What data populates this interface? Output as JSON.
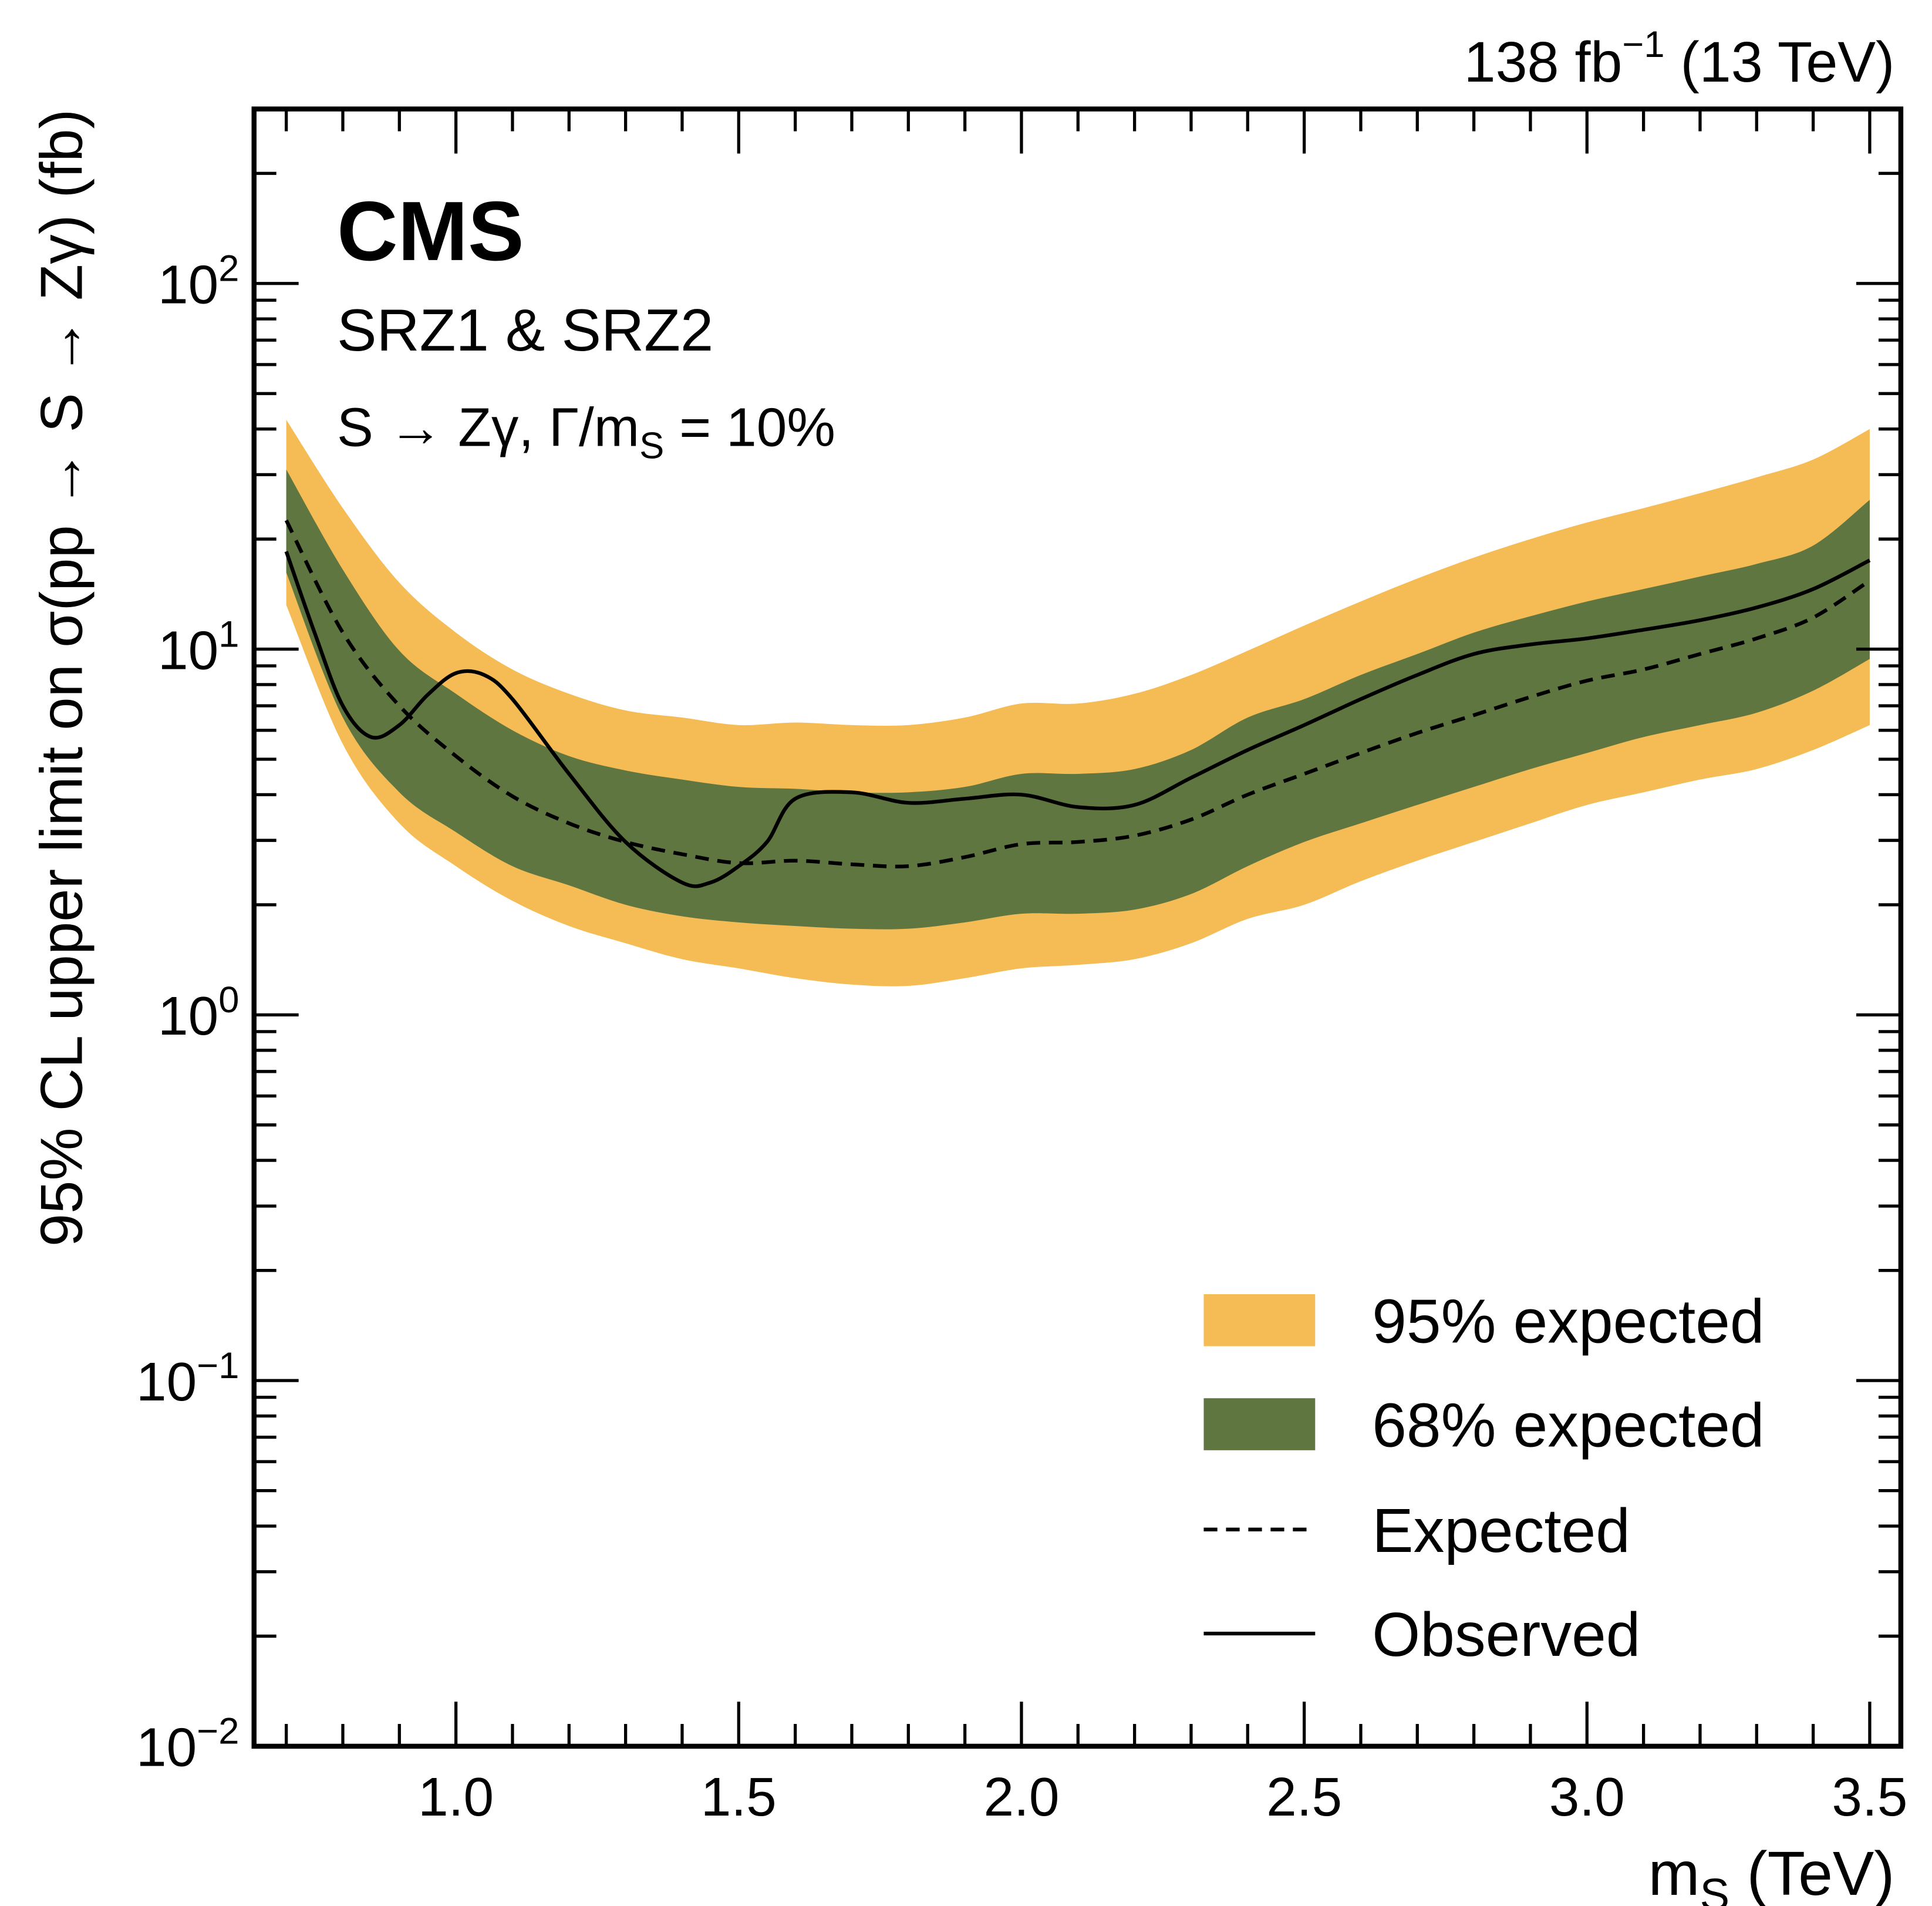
{
  "header": {
    "lumi_main": "138 fb",
    "lumi_sup": "−1",
    "lumi_tail": " (13 TeV)"
  },
  "annotations": {
    "experiment": "CMS",
    "region": "SRZ1 & SRZ2",
    "process_main": "S → Zγ,  Γ/m",
    "process_sub": "S",
    "process_tail": " = 10%"
  },
  "chart_data": {
    "type": "line",
    "title": "",
    "xlabel_main": "m",
    "xlabel_sub": "S",
    "xlabel_tail": " (TeV)",
    "ylabel": "95% CL upper limit on σ(pp → S → Zγ) (fb)",
    "xlim": [
      0.643,
      3.555
    ],
    "ylim": [
      0.01,
      300
    ],
    "yscale": "log",
    "xticks": [
      "1.0",
      "1.5",
      "2.0",
      "2.5",
      "3.0",
      "3.5"
    ],
    "yticks": [
      {
        "base": "10",
        "exp": "−2"
      },
      {
        "base": "10",
        "exp": "−1"
      },
      {
        "base": "10",
        "exp": "0"
      },
      {
        "base": "10",
        "exp": "1"
      },
      {
        "base": "10",
        "exp": "2"
      }
    ],
    "legend_position": "bottom-right",
    "colors": {
      "band95": "#F5BB54",
      "band68": "#607641",
      "line": "#000000"
    },
    "x": [
      0.7,
      0.8,
      0.9,
      1.0,
      1.1,
      1.2,
      1.3,
      1.4,
      1.5,
      1.6,
      1.7,
      1.8,
      1.9,
      2.0,
      2.1,
      2.2,
      2.3,
      2.4,
      2.5,
      2.6,
      2.7,
      2.8,
      2.9,
      3.0,
      3.1,
      3.2,
      3.3,
      3.4,
      3.5
    ],
    "series": [
      {
        "name": "95% expected",
        "kind": "band",
        "upper": [
          42.4,
          24.3,
          15.2,
          11.1,
          8.8,
          7.55,
          6.8,
          6.5,
          6.2,
          6.3,
          6.2,
          6.2,
          6.5,
          7.1,
          7.1,
          7.55,
          8.5,
          9.9,
          11.6,
          13.5,
          15.6,
          17.8,
          20,
          22.2,
          24.3,
          26.7,
          29.5,
          33,
          40
        ],
        "lower": [
          13.2,
          5.5,
          3.34,
          2.55,
          2.05,
          1.75,
          1.57,
          1.42,
          1.34,
          1.26,
          1.21,
          1.2,
          1.26,
          1.34,
          1.37,
          1.42,
          1.57,
          1.83,
          2.0,
          2.32,
          2.64,
          2.97,
          3.34,
          3.75,
          4.06,
          4.4,
          4.7,
          5.3,
          6.2
        ]
      },
      {
        "name": "68% expected",
        "kind": "band",
        "upper": [
          31,
          16.5,
          9.9,
          7.55,
          6.0,
          5.1,
          4.66,
          4.4,
          4.2,
          4.15,
          4.06,
          4.06,
          4.2,
          4.56,
          4.56,
          4.7,
          5.3,
          6.5,
          7.3,
          8.5,
          9.7,
          11.1,
          12.3,
          13.5,
          14.6,
          15.8,
          17.1,
          19.2,
          25.6
        ],
        "lower": [
          16.2,
          6.5,
          4.06,
          3.16,
          2.55,
          2.26,
          2.0,
          1.86,
          1.79,
          1.75,
          1.72,
          1.72,
          1.79,
          1.89,
          1.89,
          1.94,
          2.14,
          2.55,
          2.97,
          3.34,
          3.75,
          4.2,
          4.7,
          5.2,
          5.75,
          6.2,
          6.7,
          7.7,
          9.4
        ]
      },
      {
        "name": "Expected",
        "kind": "dashed",
        "values": [
          22.5,
          11.1,
          7.0,
          5.1,
          3.96,
          3.34,
          2.97,
          2.75,
          2.6,
          2.64,
          2.58,
          2.55,
          2.7,
          2.93,
          2.97,
          3.09,
          3.42,
          4.0,
          4.56,
          5.2,
          5.9,
          6.6,
          7.4,
          8.2,
          8.8,
          9.7,
          10.7,
          12.2,
          15.4
        ]
      },
      {
        "name": "Observed",
        "kind": "solid",
        "x": [
          0.7,
          0.75,
          0.8,
          0.85,
          0.9,
          0.95,
          1.0,
          1.05,
          1.1,
          1.2,
          1.3,
          1.4,
          1.45,
          1.5,
          1.55,
          1.6,
          1.7,
          1.8,
          1.9,
          2.0,
          2.1,
          2.2,
          2.3,
          2.4,
          2.5,
          2.6,
          2.7,
          2.8,
          2.9,
          3.0,
          3.1,
          3.2,
          3.3,
          3.4,
          3.5
        ],
        "values": [
          18.5,
          11.1,
          7.0,
          5.75,
          6.2,
          7.5,
          8.6,
          8.5,
          7.3,
          4.56,
          2.97,
          2.3,
          2.3,
          2.55,
          2.97,
          3.9,
          4.06,
          3.8,
          3.9,
          4.0,
          3.7,
          3.75,
          4.45,
          5.3,
          6.2,
          7.3,
          8.5,
          9.7,
          10.3,
          10.7,
          11.3,
          12.0,
          13.0,
          14.6,
          17.5
        ]
      }
    ]
  }
}
